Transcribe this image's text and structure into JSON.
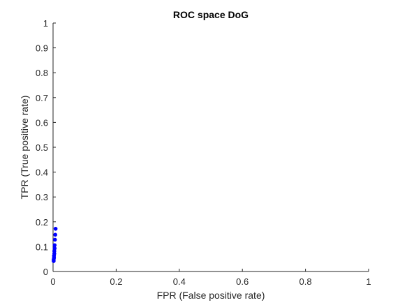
{
  "chart_data": {
    "type": "scatter",
    "title": "ROC space DoG",
    "xlabel": "FPR (False positive rate)",
    "ylabel": "TPR (True positive rate)",
    "xlim": [
      0,
      1
    ],
    "ylim": [
      0,
      1
    ],
    "x_ticks": [
      "0",
      "0.2",
      "0.4",
      "0.6",
      "0.8",
      "1"
    ],
    "y_ticks": [
      "0",
      "0.1",
      "0.2",
      "0.3",
      "0.4",
      "0.5",
      "0.6",
      "0.7",
      "0.8",
      "0.9",
      "1"
    ],
    "grid": false,
    "box": false,
    "marker_color": "#0000ff",
    "axis_color": "#262626",
    "series": [
      {
        "points": [
          {
            "x": 0.002,
            "y": 0.042
          },
          {
            "x": 0.002,
            "y": 0.048
          },
          {
            "x": 0.003,
            "y": 0.055
          },
          {
            "x": 0.003,
            "y": 0.063
          },
          {
            "x": 0.004,
            "y": 0.072
          },
          {
            "x": 0.004,
            "y": 0.082
          },
          {
            "x": 0.005,
            "y": 0.093
          },
          {
            "x": 0.005,
            "y": 0.106
          },
          {
            "x": 0.006,
            "y": 0.128
          },
          {
            "x": 0.007,
            "y": 0.148
          },
          {
            "x": 0.008,
            "y": 0.172
          }
        ]
      }
    ]
  }
}
